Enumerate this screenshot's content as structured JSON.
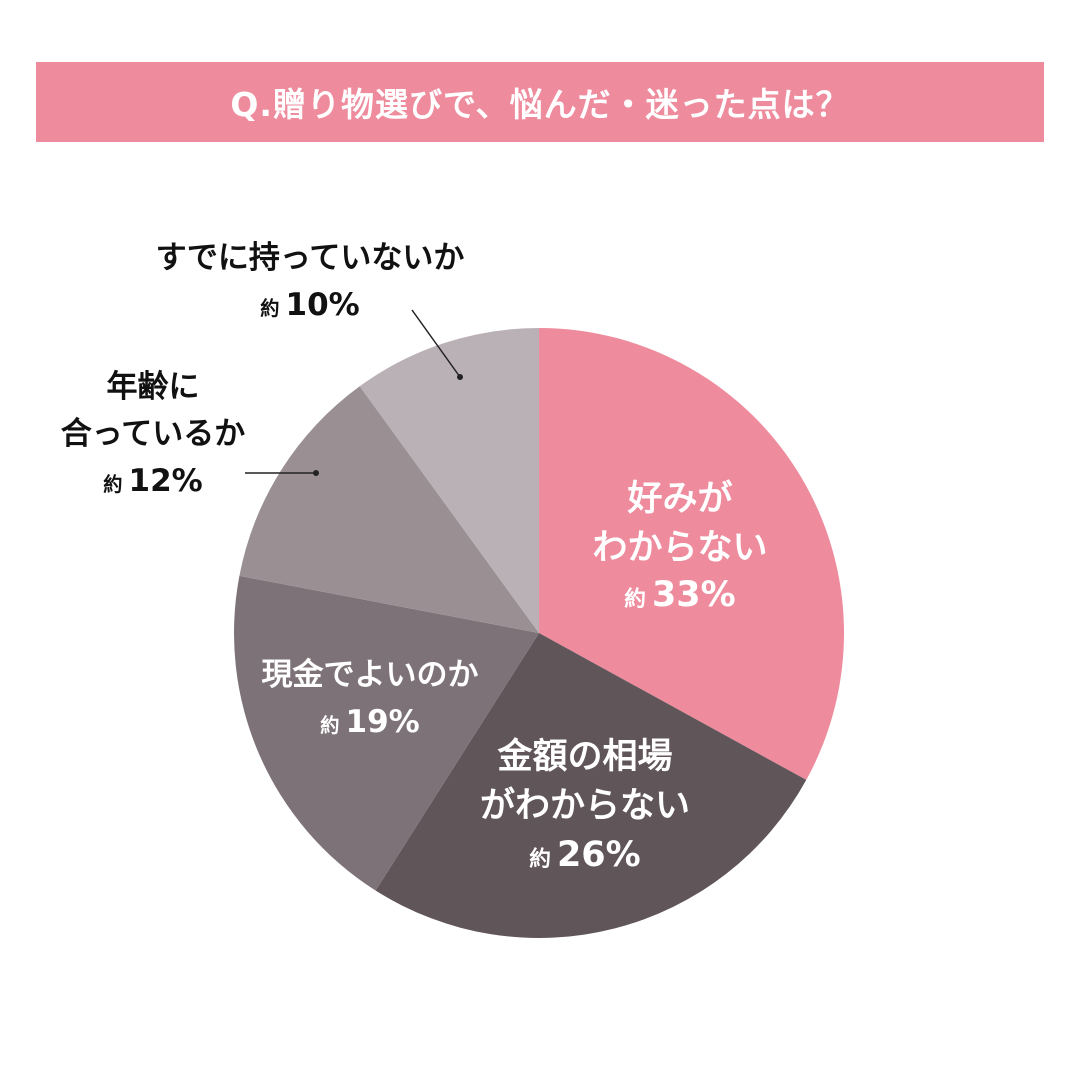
{
  "title": "Q.贈り物選びで、悩んだ・迷った点は？",
  "chart_data": {
    "type": "pie",
    "title": "Q.贈り物選びで、悩んだ・迷った点は？",
    "start_angle": "12 o'clock, clockwise",
    "categories": [
      "好みがわからない",
      "金額の相場がわからない",
      "現金でよいのか",
      "年齢に合っているか",
      "すでに持っていないか"
    ],
    "values": [
      33,
      26,
      19,
      12,
      10
    ],
    "value_prefix": "約",
    "value_suffix": "%",
    "colors": [
      "#EE8C9E",
      "#605559",
      "#7D7277",
      "#9A9094",
      "#B9B1B5"
    ],
    "legend": "none (direct labels)"
  },
  "labels": {
    "s0": {
      "line1": "好みが",
      "line2": "わからない",
      "prefix": "約",
      "pct": "33%"
    },
    "s1": {
      "line1": "金額の相場",
      "line2": "がわからない",
      "prefix": "約",
      "pct": "26%"
    },
    "s2": {
      "line1": "現金でよいのか",
      "prefix": "約",
      "pct": "19%"
    },
    "s3": {
      "line1": "年齢に",
      "line2": "合っているか",
      "prefix": "約",
      "pct": "12%"
    },
    "s4": {
      "line1": "すでに持っていないか",
      "prefix": "約",
      "pct": "10%"
    }
  }
}
